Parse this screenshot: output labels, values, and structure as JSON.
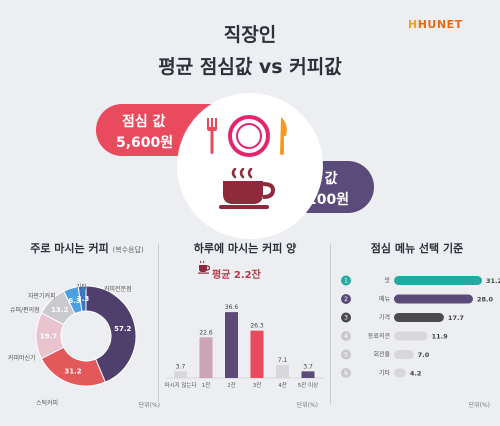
{
  "header": {
    "title_line1": "직장인",
    "title_line2": "평균 점심값 vs 커피값",
    "logo_prefix": "H",
    "logo_text": "HUNET"
  },
  "summary": {
    "lunch_label": "점심 값",
    "lunch_value": "5,600원",
    "coffee_label": "커피 값",
    "coffee_value": "3,200원",
    "colors": {
      "lunch": "#e94a5d",
      "coffee": "#5a4b7a"
    }
  },
  "panels": {
    "p1": {
      "title": "주로 마시는 커피",
      "note": "(복수응답)",
      "unit": "단위(%)"
    },
    "p2": {
      "title": "하루에 마시는 커피 양",
      "avg_label": "평균 2.2잔",
      "unit": "단위(%)"
    },
    "p3": {
      "title": "점심 메뉴 선택 기준",
      "unit": "단위(%)"
    }
  },
  "chart_data": [
    {
      "type": "pie",
      "title": "주로 마시는 커피",
      "subtitle": "(복수응답)",
      "categories": [
        "커피전문점",
        "스틱커피",
        "커피머신기",
        "슈퍼/편의점",
        "자판기커피",
        "기타"
      ],
      "values": [
        57.2,
        31.2,
        19.7,
        13.2,
        6.3,
        3.3
      ],
      "colors": [
        "#4f3f6c",
        "#e3585a",
        "#e9c4cf",
        "#c9c9cf",
        "#4c9fe0",
        "#3a78c2"
      ],
      "unit": "단위(%)"
    },
    {
      "type": "bar",
      "title": "하루에 마시는 커피 양",
      "annotation": "평균 2.2잔",
      "categories": [
        "마시지 않는다",
        "1잔",
        "2잔",
        "3잔",
        "4잔",
        "5잔 이상"
      ],
      "values": [
        3.7,
        22.6,
        36.6,
        26.3,
        7.1,
        3.7
      ],
      "colors": [
        "#d7d7dc",
        "#c9a5b7",
        "#5a4b7a",
        "#e94a5d",
        "#d7d7dc",
        "#5a4b7a"
      ],
      "unit": "단위(%)"
    },
    {
      "type": "bar",
      "orientation": "horizontal",
      "title": "점심 메뉴 선택 기준",
      "categories": [
        "맛",
        "메뉴",
        "가격",
        "동료의견",
        "회전율",
        "기타"
      ],
      "ranks": [
        "1",
        "2",
        "3",
        "4",
        "5",
        "6"
      ],
      "values": [
        31.2,
        28.0,
        17.7,
        11.9,
        7.0,
        4.2
      ],
      "colors": [
        "#25a9a0",
        "#5a4b7a",
        "#4a4a4f",
        "#d7d7dc",
        "#d7d7dc",
        "#d7d7dc"
      ],
      "rank_colors": [
        "#25a9a0",
        "#5a4b7a",
        "#4a4a4f",
        "#c8c8cd",
        "#c8c8cd",
        "#c8c8cd"
      ],
      "unit": "단위(%)"
    }
  ]
}
